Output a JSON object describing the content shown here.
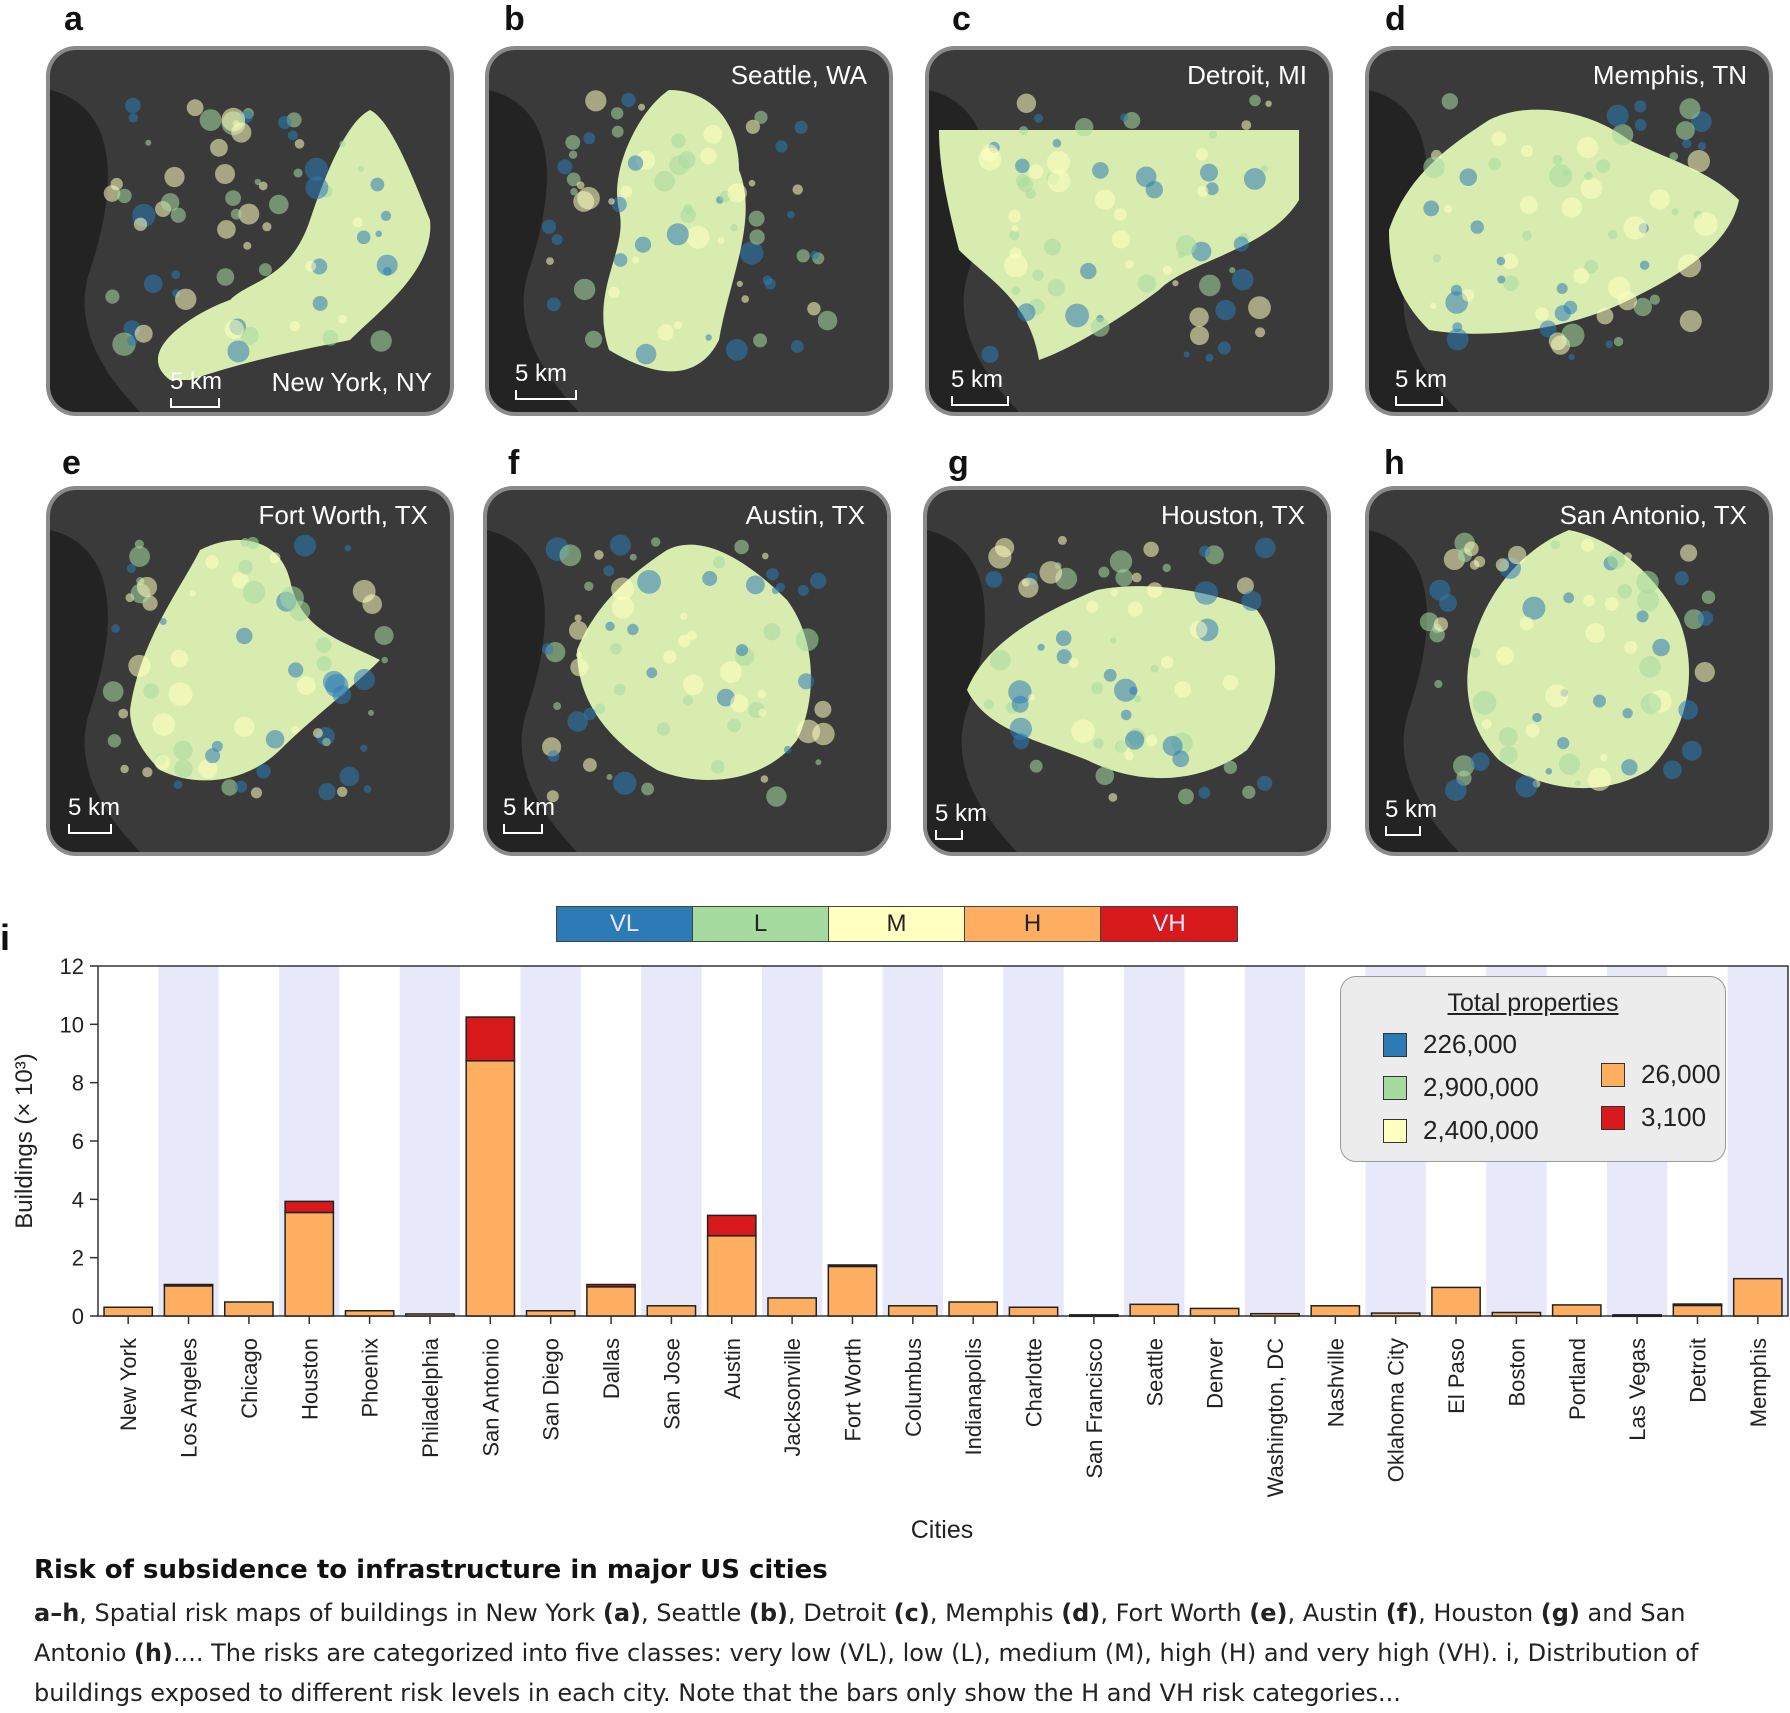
{
  "panels": [
    {
      "letter": "a",
      "city": "New York, NY",
      "scale": "5 km"
    },
    {
      "letter": "b",
      "city": "Seattle, WA",
      "scale": "5 km"
    },
    {
      "letter": "c",
      "city": "Detroit, MI",
      "scale": "5 km"
    },
    {
      "letter": "d",
      "city": "Memphis, TN",
      "scale": "5 km"
    },
    {
      "letter": "e",
      "city": "Fort Worth, TX",
      "scale": "5 km"
    },
    {
      "letter": "f",
      "city": "Austin, TX",
      "scale": "5 km"
    },
    {
      "letter": "g",
      "city": "Houston, TX",
      "scale": "5 km"
    },
    {
      "letter": "h",
      "city": "San Antonio, TX",
      "scale": "5 km"
    }
  ],
  "risk_classes": [
    {
      "code": "VL",
      "color": "#2c7bb6"
    },
    {
      "code": "L",
      "color": "#a6dba0"
    },
    {
      "code": "M",
      "color": "#ffffbf"
    },
    {
      "code": "H",
      "color": "#fdae61"
    },
    {
      "code": "VH",
      "color": "#d7191c"
    }
  ],
  "total_properties": {
    "title": "Total properties",
    "items": [
      {
        "value": "226,000",
        "color": "#2c7bb6"
      },
      {
        "value": "2,900,000",
        "color": "#a6dba0"
      },
      {
        "value": "2,400,000",
        "color": "#ffffbf"
      },
      {
        "value": "26,000",
        "color": "#fdae61"
      },
      {
        "value": "3,100",
        "color": "#d7191c"
      }
    ]
  },
  "chart_panel_letter": "i",
  "chart_data": {
    "type": "bar",
    "stacked": true,
    "ylabel": "Buildings (× 10³)",
    "xlabel": "Cities",
    "ylim": [
      0,
      12
    ],
    "yticks": [
      0,
      2,
      4,
      6,
      8,
      10,
      12
    ],
    "categories": [
      "New York",
      "Los Angeles",
      "Chicago",
      "Houston",
      "Phoenix",
      "Philadelphia",
      "San Antonio",
      "San Diego",
      "Dallas",
      "San Jose",
      "Austin",
      "Jacksonville",
      "Fort Worth",
      "Columbus",
      "Indianapolis",
      "Charlotte",
      "San Francisco",
      "Seattle",
      "Denver",
      "Washington, DC",
      "Nashville",
      "Oklahoma City",
      "El Paso",
      "Boston",
      "Portland",
      "Las Vegas",
      "Detroit",
      "Memphis"
    ],
    "series": [
      {
        "code": "H",
        "color": "#fdae61",
        "values": [
          0.3,
          1.05,
          0.48,
          3.55,
          0.18,
          0.07,
          8.75,
          0.18,
          1.0,
          0.35,
          2.75,
          0.62,
          1.7,
          0.35,
          0.48,
          0.3,
          0.04,
          0.4,
          0.26,
          0.08,
          0.35,
          0.1,
          0.98,
          0.12,
          0.38,
          0.04,
          0.38,
          1.28
        ]
      },
      {
        "code": "VH",
        "color": "#d7191c",
        "values": [
          0.0,
          0.03,
          0.0,
          0.38,
          0.0,
          0.0,
          1.5,
          0.0,
          0.08,
          0.0,
          0.7,
          0.0,
          0.05,
          0.0,
          0.0,
          0.0,
          0.0,
          0.0,
          0.0,
          0.0,
          0.0,
          0.0,
          0.0,
          0.0,
          0.0,
          0.0,
          0.03,
          0.0
        ]
      }
    ],
    "alternate_band_color": "#e8e8fb"
  },
  "caption": {
    "title": "Risk of subsidence to infrastructure in major US cities",
    "lead": "a–h",
    "body": [
      {
        "t": ", Spatial risk maps of buildings in New York ",
        "b": false
      },
      {
        "t": "(a)",
        "b": true
      },
      {
        "t": ", Seattle ",
        "b": false
      },
      {
        "t": "(b)",
        "b": true
      },
      {
        "t": ", Detroit ",
        "b": false
      },
      {
        "t": "(c)",
        "b": true
      },
      {
        "t": ", Memphis ",
        "b": false
      },
      {
        "t": "(d)",
        "b": true
      },
      {
        "t": ", Fort Worth ",
        "b": false
      },
      {
        "t": "(e)",
        "b": true
      },
      {
        "t": ", Austin ",
        "b": false
      },
      {
        "t": "(f)",
        "b": true
      },
      {
        "t": ", Houston ",
        "b": false
      },
      {
        "t": "(g)",
        "b": true
      },
      {
        "t": " and San Antonio ",
        "b": false
      },
      {
        "t": "(h)",
        "b": true
      },
      {
        "t": ".... The risks are categorized into five classes: very low (VL), low (L), medium (M), high (H) and very high (VH). i, Distribution of buildings exposed to different risk levels in each city. Note that the bars only show the H and VH risk categories...",
        "b": false
      }
    ]
  }
}
